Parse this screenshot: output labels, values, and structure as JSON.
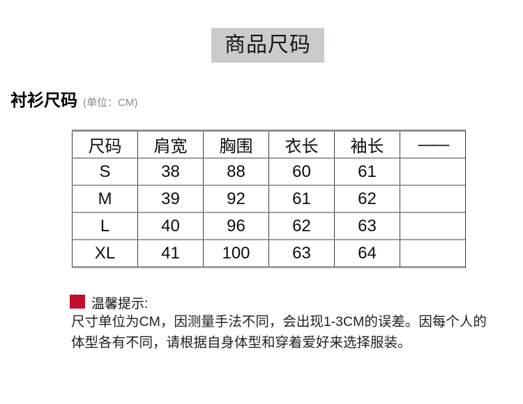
{
  "banner": {
    "title": "商品尺码"
  },
  "heading": {
    "title": "衬衫尺码",
    "unit": "(单位：CM)"
  },
  "size_table": {
    "columns": [
      "尺码",
      "肩宽",
      "胸围",
      "衣长",
      "袖长",
      "——"
    ],
    "rows": [
      [
        "S",
        "38",
        "88",
        "60",
        "61",
        ""
      ],
      [
        "M",
        "39",
        "92",
        "61",
        "62",
        ""
      ],
      [
        "L",
        "40",
        "96",
        "62",
        "63",
        ""
      ],
      [
        "XL",
        "41",
        "100",
        "63",
        "64",
        ""
      ]
    ]
  },
  "tips": {
    "title": "温馨提示:",
    "lines": [
      "尺寸单位为CM，因测量手法不同，会出现1-3CM的误差。因每个人的",
      "体型各有不同，请根据自身体型和穿着爱好来选择服装。"
    ]
  },
  "colors": {
    "banner_background": "#c9cccf",
    "tip_marker_red": "#c30e2e",
    "table_vertical_border": "#3c3c3c",
    "table_horizontal_border": "#9e9e9e"
  }
}
